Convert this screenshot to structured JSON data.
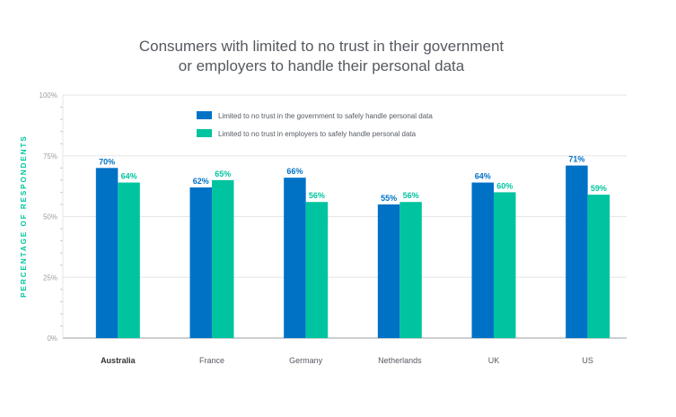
{
  "chart_data": {
    "type": "bar",
    "title": [
      "Consumers with limited to no trust in their government",
      "or employers to handle their personal data"
    ],
    "xlabel": "",
    "ylabel": "PERCENTAGE OF RESPONDENTS",
    "ylim": [
      0,
      100
    ],
    "yticks": [
      "0%",
      "25%",
      "50%",
      "75%",
      "100%"
    ],
    "categories": [
      "Australia",
      "France",
      "Germany",
      "Netherlands",
      "UK",
      "US"
    ],
    "highlighted_category": "Australia",
    "series": [
      {
        "name": "Limited to no trust in the government to safely handle personal data",
        "values": [
          70,
          62,
          66,
          55,
          64,
          71
        ],
        "labels": [
          "70%",
          "62%",
          "66%",
          "55%",
          "64%",
          "71%"
        ],
        "color": "#0072c6"
      },
      {
        "name": "Limited to no trust in employers to safely handle personal data",
        "values": [
          64,
          65,
          56,
          56,
          60,
          59
        ],
        "labels": [
          "64%",
          "65%",
          "56%",
          "56%",
          "60%",
          "59%"
        ],
        "color": "#00c49f"
      }
    ],
    "grid": true,
    "legend_position": "top-center",
    "colors": {
      "ylabel": "#00c49f",
      "grid": "#e6e6e6",
      "axis": "#9a9ea3"
    }
  }
}
